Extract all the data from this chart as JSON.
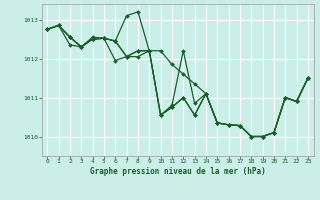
{
  "title": "Graphe pression niveau de la mer (hPa)",
  "background_color": "#cceee8",
  "grid_color": "#ffffff",
  "line_color": "#1a5e2a",
  "marker_color": "#1a5e2a",
  "xlim": [
    -0.5,
    23.5
  ],
  "ylim": [
    1009.5,
    1013.4
  ],
  "yticks": [
    1010,
    1011,
    1012,
    1013
  ],
  "xticks": [
    0,
    1,
    2,
    3,
    4,
    5,
    6,
    7,
    8,
    9,
    10,
    11,
    12,
    13,
    14,
    15,
    16,
    17,
    18,
    19,
    20,
    21,
    22,
    23
  ],
  "series": [
    [
      1012.75,
      1012.85,
      1012.55,
      1012.3,
      1012.5,
      1012.52,
      1012.45,
      1013.1,
      1013.2,
      1012.2,
      1010.55,
      1010.8,
      1012.2,
      1010.85,
      1011.1,
      1010.35,
      1010.3,
      1010.28,
      1010.0,
      1010.0,
      1010.1,
      1011.0,
      1010.9,
      1011.5
    ],
    [
      1012.75,
      1012.85,
      1012.55,
      1012.3,
      1012.5,
      1012.52,
      1012.45,
      1012.05,
      1012.05,
      1012.2,
      1012.2,
      1011.85,
      1011.6,
      1011.35,
      1011.1,
      1010.35,
      1010.3,
      1010.28,
      1010.0,
      1010.0,
      1010.1,
      1011.0,
      1010.9,
      1011.5
    ],
    [
      1012.75,
      1012.85,
      1012.55,
      1012.3,
      1012.5,
      1012.52,
      1012.45,
      1012.05,
      1012.2,
      1012.2,
      1010.55,
      1010.75,
      1011.0,
      1010.55,
      1011.1,
      1010.35,
      1010.3,
      1010.28,
      1010.0,
      1010.0,
      1010.1,
      1011.0,
      1010.9,
      1011.5
    ],
    [
      1012.75,
      1012.85,
      1012.35,
      1012.3,
      1012.55,
      1012.52,
      1011.95,
      1012.05,
      1012.2,
      1012.2,
      1010.55,
      1010.75,
      1011.0,
      1010.55,
      1011.1,
      1010.35,
      1010.3,
      1010.28,
      1010.0,
      1010.0,
      1010.1,
      1011.0,
      1010.9,
      1011.5
    ]
  ]
}
